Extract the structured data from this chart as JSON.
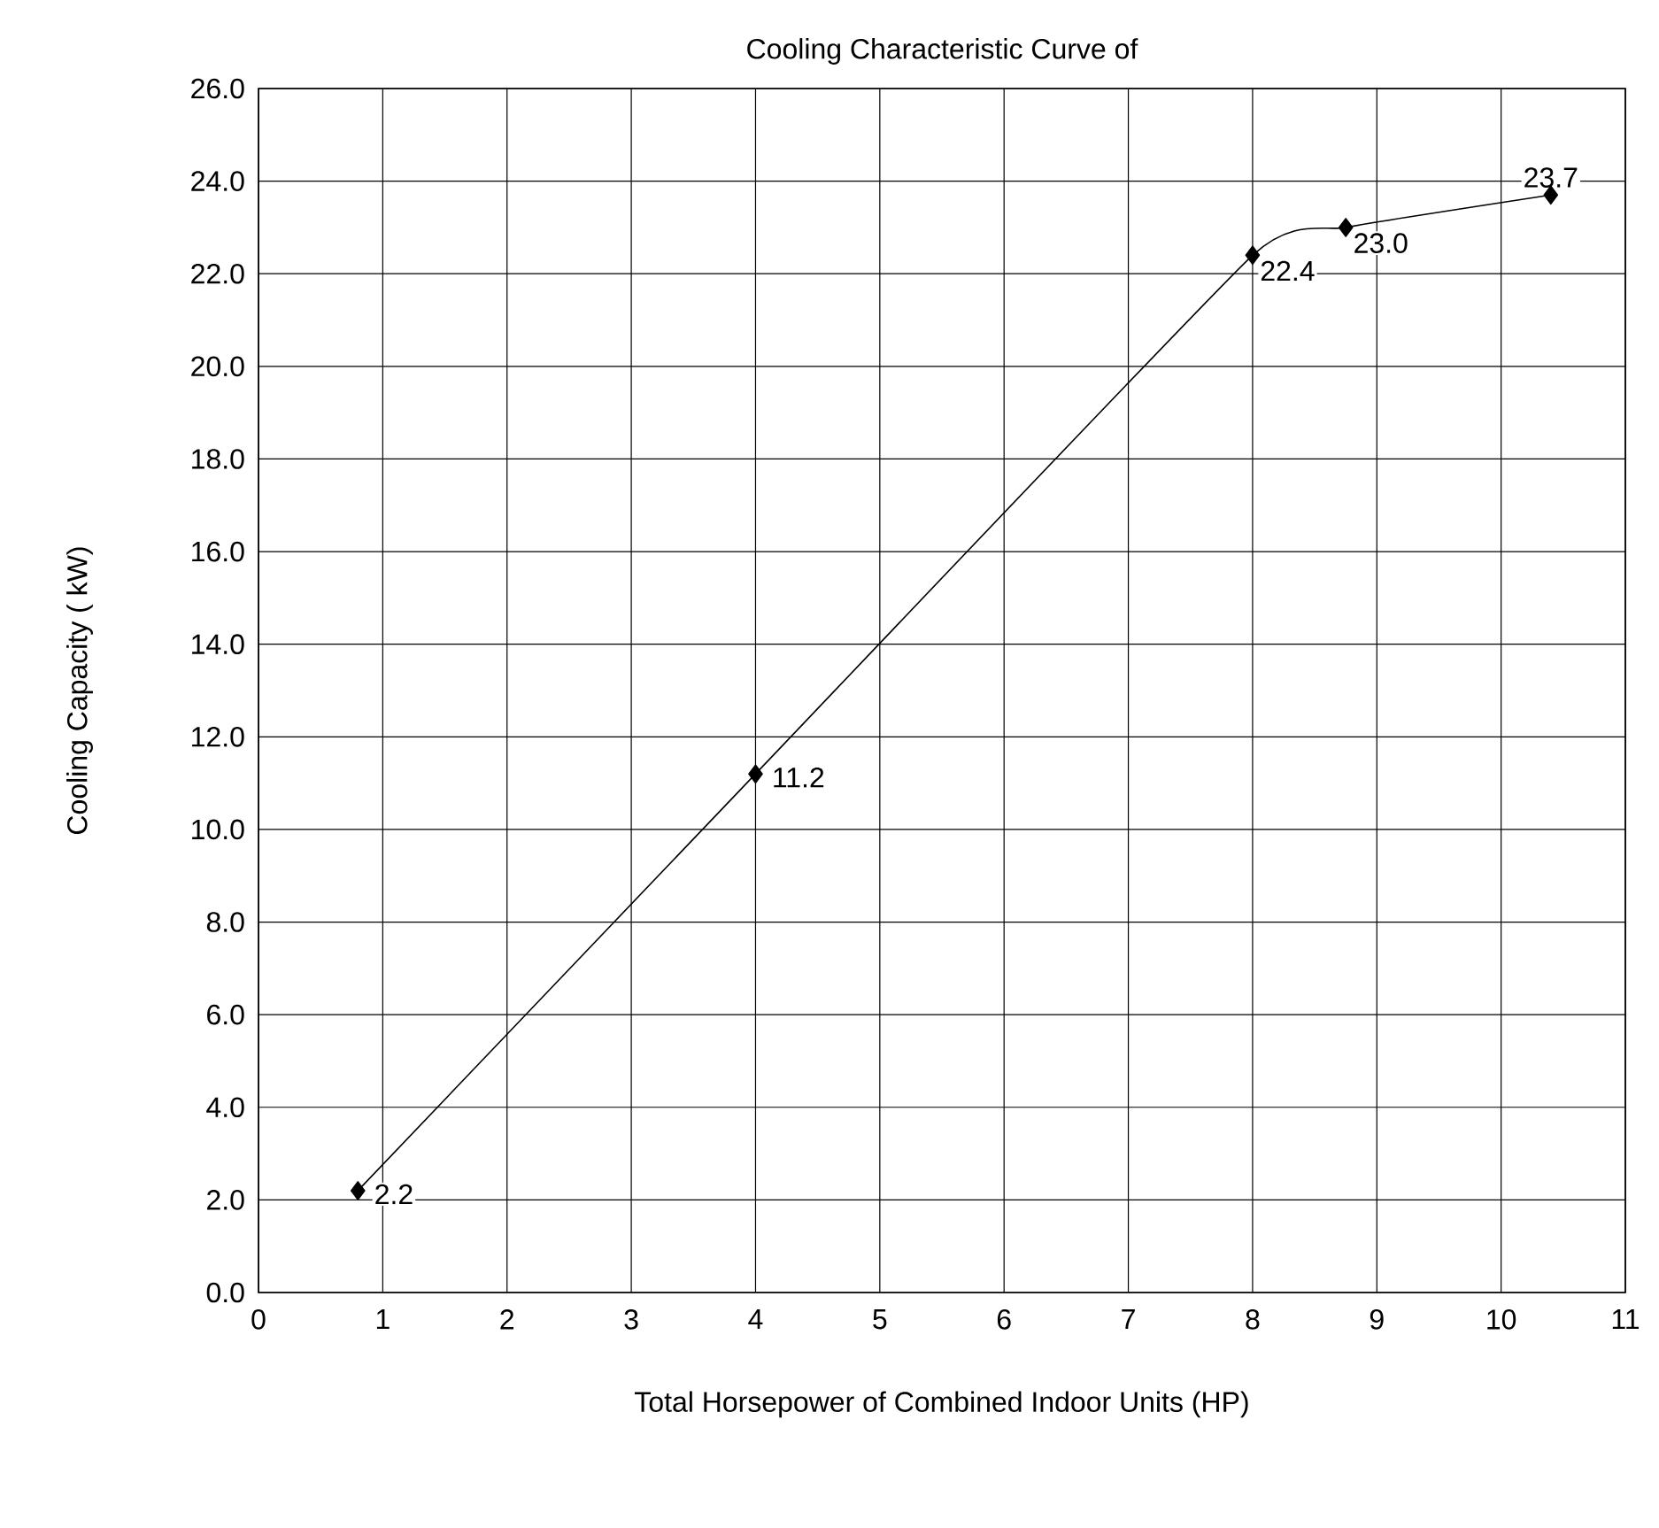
{
  "chart_data": {
    "type": "line",
    "title": "Cooling Characteristic Curve of",
    "xlabel": "Total Horsepower of Combined Indoor Units (HP)",
    "ylabel": "Cooling Capacity ( kW)",
    "x": [
      0.8,
      4,
      8,
      8.75,
      10.4
    ],
    "values": [
      2.2,
      11.2,
      22.4,
      23.0,
      23.7
    ],
    "value_labels": [
      "2.2",
      "11.2",
      "22.4",
      "23.0",
      "23.7"
    ],
    "color": "#000000",
    "marker": "diamond",
    "line_style": "solid",
    "grid": true,
    "xlim": [
      0,
      11
    ],
    "xticks": [
      0,
      1,
      2,
      3,
      4,
      5,
      6,
      7,
      8,
      9,
      10,
      11
    ],
    "ylim": [
      0,
      26
    ],
    "yticks": [
      {
        "value": 0,
        "label": "0.0"
      },
      {
        "value": 2,
        "label": "2.0"
      },
      {
        "value": 4,
        "label": "4.0"
      },
      {
        "value": 6,
        "label": "6.0"
      },
      {
        "value": 8,
        "label": "8.0"
      },
      {
        "value": 10,
        "label": "10.0"
      },
      {
        "value": 12,
        "label": "12.0"
      },
      {
        "value": 14,
        "label": "14.0"
      },
      {
        "value": 16,
        "label": "16.0"
      },
      {
        "value": 18,
        "label": "18.0"
      },
      {
        "value": 20,
        "label": "20.0"
      },
      {
        "value": 22,
        "label": "22.0"
      },
      {
        "value": 24,
        "label": "24.0"
      },
      {
        "value": 26,
        "label": "26.0"
      }
    ]
  }
}
